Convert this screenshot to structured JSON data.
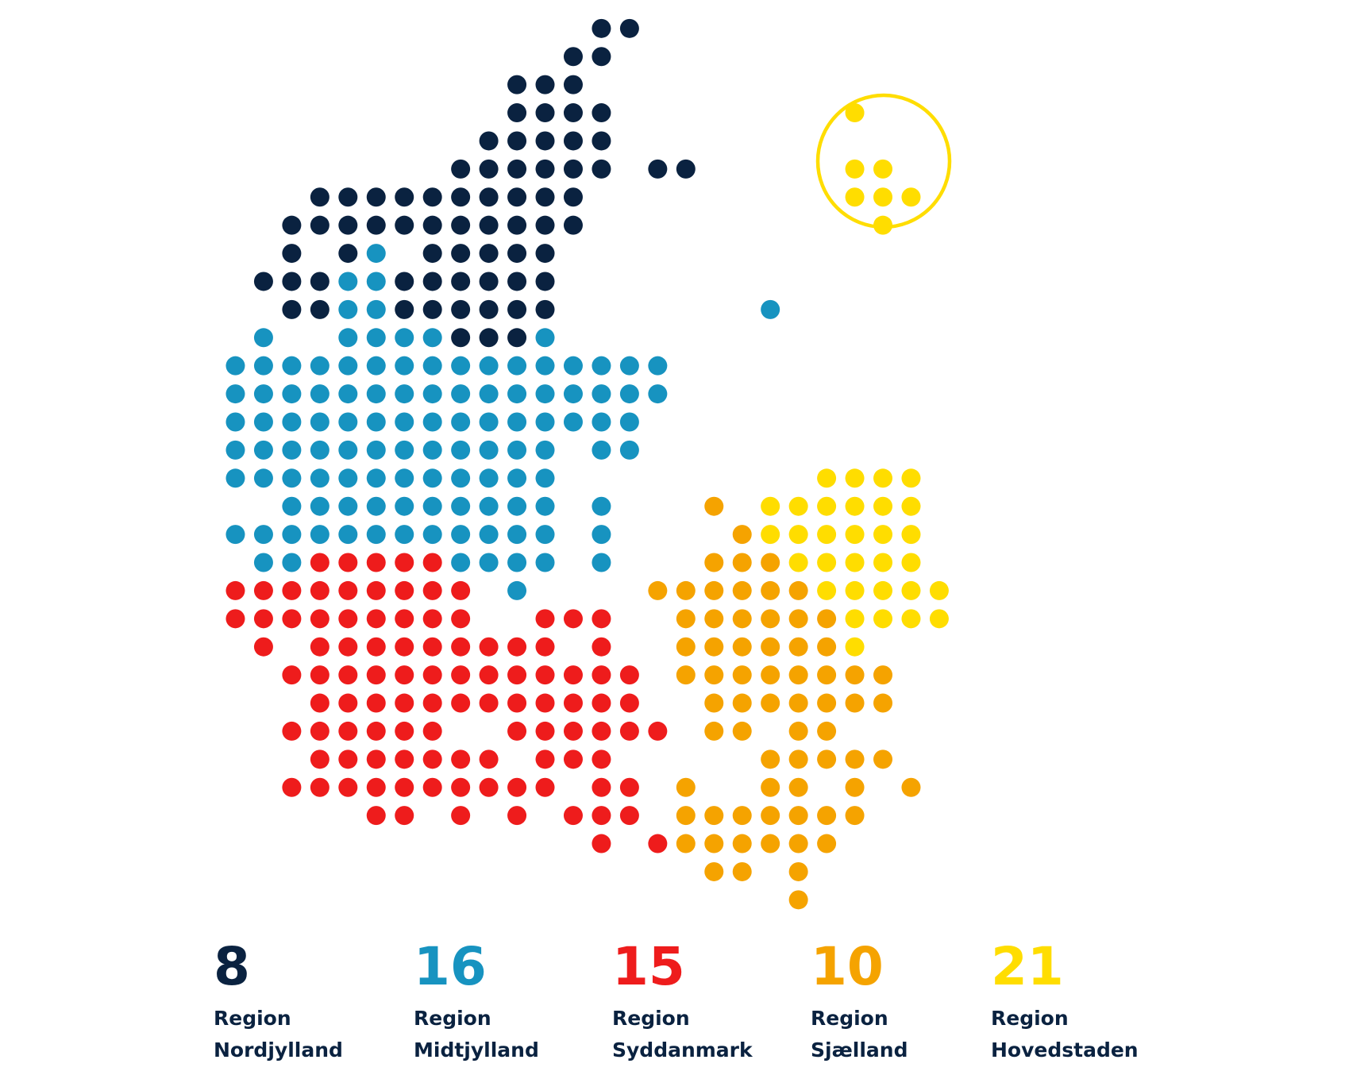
{
  "regions": [
    {
      "count": 8,
      "label": [
        "Region",
        "Nordjylland"
      ],
      "color": "#0a2240"
    },
    {
      "count": 16,
      "label": [
        "Region",
        "Midtjylland"
      ],
      "color": "#1793c0"
    },
    {
      "count": 15,
      "label": [
        "Region",
        "Syddanmark"
      ],
      "color": "#ee1c1c"
    },
    {
      "count": 10,
      "label": [
        "Region",
        "Sjælland"
      ],
      "color": "#f5a300"
    },
    {
      "count": 21,
      "label": [
        "Region",
        "Hovedstaden"
      ],
      "color": "#ffdd00"
    }
  ]
}
